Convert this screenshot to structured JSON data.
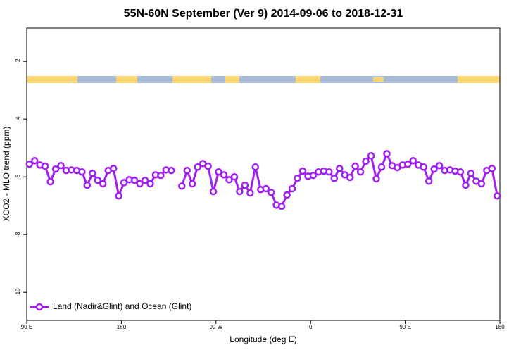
{
  "chart_data": {
    "type": "line",
    "title": "55N-60N September (Ver 9)   2014-09-06 to 2018-12-31",
    "x_label": "Longitude (deg E)",
    "y_label": "XCO2 - MLO trend (ppm)",
    "x": [
      92.5,
      97.5,
      102.5,
      107.5,
      112.5,
      117.5,
      122.5,
      127.5,
      132.5,
      137.5,
      142.5,
      147.5,
      152.5,
      157.5,
      162.5,
      167.5,
      172.5,
      177.5,
      182.5,
      187.5,
      192.5,
      197.5,
      202.5,
      207.5,
      212.5,
      217.5,
      222.5,
      227.5,
      232.5,
      237.5,
      242.5,
      247.5,
      252.5,
      257.5,
      262.5,
      267.5,
      272.5,
      277.5,
      282.5,
      287.5,
      292.5,
      297.5,
      302.5,
      307.5,
      312.5,
      317.5,
      322.5,
      327.5,
      332.5,
      337.5,
      342.5,
      347.5,
      352.5,
      357.5,
      362.5,
      367.5,
      372.5,
      377.5,
      382.5,
      387.5,
      392.5,
      397.5,
      402.5,
      407.5,
      412.5,
      417.5,
      422.5,
      427.5,
      432.5,
      437.5,
      442.5,
      447.5,
      452.5,
      457.5,
      462.5,
      467.5,
      472.5,
      477.5,
      482.5,
      487.5,
      492.5,
      497.5,
      502.5,
      507.5,
      512.5,
      517.5,
      522.5,
      527.5,
      532.5,
      537.5
    ],
    "series": [
      {
        "name": "Land (Nadir&Glint) and Ocean (Glint)",
        "color": "#a020f0",
        "values": [
          -5.56,
          -5.44,
          -5.59,
          -5.63,
          -6.17,
          -5.73,
          -5.61,
          -5.78,
          -5.76,
          -5.78,
          -5.83,
          -6.29,
          -5.88,
          -6.12,
          -6.24,
          -5.78,
          -5.71,
          -6.66,
          -6.2,
          -6.1,
          -6.12,
          -6.24,
          -6.12,
          -6.24,
          -5.93,
          -5.95,
          -5.76,
          -5.78,
          null,
          -6.32,
          -5.78,
          -6.24,
          -5.66,
          -5.54,
          -5.63,
          -6.51,
          -5.83,
          -5.93,
          -6.1,
          -6.0,
          -6.51,
          -6.29,
          -6.56,
          -5.66,
          -6.44,
          -6.41,
          -6.54,
          -6.98,
          -7.02,
          -6.63,
          -6.41,
          -6.05,
          -5.8,
          -5.98,
          -5.95,
          -5.83,
          -5.8,
          -5.83,
          -6.05,
          -5.71,
          -5.93,
          -6.02,
          -5.63,
          -5.83,
          -5.46,
          -5.27,
          -6.07,
          -5.66,
          -5.2,
          -5.61,
          -5.68,
          -5.59,
          -5.56,
          -5.44,
          -5.59,
          -5.66,
          -6.15,
          -5.73,
          -5.61,
          -5.78,
          -5.76,
          -5.8,
          -5.83,
          -6.29,
          -5.88,
          -6.15,
          -6.24,
          -5.78,
          -5.71,
          -6.66
        ]
      }
    ],
    "xlim": [
      90,
      540
    ],
    "xticks": [
      {
        "value": 90,
        "label": "90 E"
      },
      180,
      {
        "value": 270,
        "label": "90 W"
      },
      {
        "value": 360,
        "label": "0"
      },
      {
        "value": 450,
        "label": "90 E"
      },
      180
    ],
    "ylim": [
      -10.97,
      -0.85
    ],
    "yticks": [
      -2,
      -4,
      -6,
      -8,
      -10
    ],
    "legend": "bottom-left"
  }
}
